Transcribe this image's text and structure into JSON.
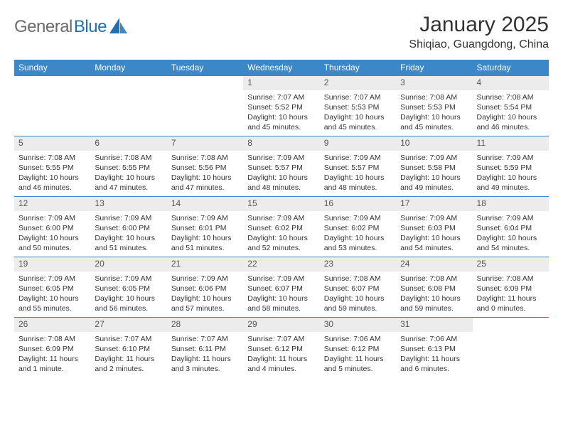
{
  "brand": {
    "name_part1": "General",
    "name_part2": "Blue",
    "text_color": "#6a6a6a",
    "accent_color": "#1f6fb2"
  },
  "title": "January 2025",
  "location": "Shiqiao, Guangdong, China",
  "colors": {
    "header_bg": "#3b87c8",
    "header_text": "#ffffff",
    "row_divider": "#3b87c8",
    "daynum_bg": "#ececec",
    "body_text": "#333333",
    "page_bg": "#ffffff"
  },
  "fonts": {
    "title_size_pt": 30,
    "location_size_pt": 16,
    "dayheader_size_pt": 12,
    "daynum_size_pt": 12,
    "body_size_pt": 10.5
  },
  "layout": {
    "type": "table",
    "columns": 7,
    "rows": 5
  },
  "day_headers": [
    "Sunday",
    "Monday",
    "Tuesday",
    "Wednesday",
    "Thursday",
    "Friday",
    "Saturday"
  ],
  "weeks": [
    [
      {
        "empty": true
      },
      {
        "empty": true
      },
      {
        "empty": true
      },
      {
        "n": "1",
        "sunrise": "7:07 AM",
        "sunset": "5:52 PM",
        "daylight": "10 hours and 45 minutes."
      },
      {
        "n": "2",
        "sunrise": "7:07 AM",
        "sunset": "5:53 PM",
        "daylight": "10 hours and 45 minutes."
      },
      {
        "n": "3",
        "sunrise": "7:08 AM",
        "sunset": "5:53 PM",
        "daylight": "10 hours and 45 minutes."
      },
      {
        "n": "4",
        "sunrise": "7:08 AM",
        "sunset": "5:54 PM",
        "daylight": "10 hours and 46 minutes."
      }
    ],
    [
      {
        "n": "5",
        "sunrise": "7:08 AM",
        "sunset": "5:55 PM",
        "daylight": "10 hours and 46 minutes."
      },
      {
        "n": "6",
        "sunrise": "7:08 AM",
        "sunset": "5:55 PM",
        "daylight": "10 hours and 47 minutes."
      },
      {
        "n": "7",
        "sunrise": "7:08 AM",
        "sunset": "5:56 PM",
        "daylight": "10 hours and 47 minutes."
      },
      {
        "n": "8",
        "sunrise": "7:09 AM",
        "sunset": "5:57 PM",
        "daylight": "10 hours and 48 minutes."
      },
      {
        "n": "9",
        "sunrise": "7:09 AM",
        "sunset": "5:57 PM",
        "daylight": "10 hours and 48 minutes."
      },
      {
        "n": "10",
        "sunrise": "7:09 AM",
        "sunset": "5:58 PM",
        "daylight": "10 hours and 49 minutes."
      },
      {
        "n": "11",
        "sunrise": "7:09 AM",
        "sunset": "5:59 PM",
        "daylight": "10 hours and 49 minutes."
      }
    ],
    [
      {
        "n": "12",
        "sunrise": "7:09 AM",
        "sunset": "6:00 PM",
        "daylight": "10 hours and 50 minutes."
      },
      {
        "n": "13",
        "sunrise": "7:09 AM",
        "sunset": "6:00 PM",
        "daylight": "10 hours and 51 minutes."
      },
      {
        "n": "14",
        "sunrise": "7:09 AM",
        "sunset": "6:01 PM",
        "daylight": "10 hours and 51 minutes."
      },
      {
        "n": "15",
        "sunrise": "7:09 AM",
        "sunset": "6:02 PM",
        "daylight": "10 hours and 52 minutes."
      },
      {
        "n": "16",
        "sunrise": "7:09 AM",
        "sunset": "6:02 PM",
        "daylight": "10 hours and 53 minutes."
      },
      {
        "n": "17",
        "sunrise": "7:09 AM",
        "sunset": "6:03 PM",
        "daylight": "10 hours and 54 minutes."
      },
      {
        "n": "18",
        "sunrise": "7:09 AM",
        "sunset": "6:04 PM",
        "daylight": "10 hours and 54 minutes."
      }
    ],
    [
      {
        "n": "19",
        "sunrise": "7:09 AM",
        "sunset": "6:05 PM",
        "daylight": "10 hours and 55 minutes."
      },
      {
        "n": "20",
        "sunrise": "7:09 AM",
        "sunset": "6:05 PM",
        "daylight": "10 hours and 56 minutes."
      },
      {
        "n": "21",
        "sunrise": "7:09 AM",
        "sunset": "6:06 PM",
        "daylight": "10 hours and 57 minutes."
      },
      {
        "n": "22",
        "sunrise": "7:09 AM",
        "sunset": "6:07 PM",
        "daylight": "10 hours and 58 minutes."
      },
      {
        "n": "23",
        "sunrise": "7:08 AM",
        "sunset": "6:07 PM",
        "daylight": "10 hours and 59 minutes."
      },
      {
        "n": "24",
        "sunrise": "7:08 AM",
        "sunset": "6:08 PM",
        "daylight": "10 hours and 59 minutes."
      },
      {
        "n": "25",
        "sunrise": "7:08 AM",
        "sunset": "6:09 PM",
        "daylight": "11 hours and 0 minutes."
      }
    ],
    [
      {
        "n": "26",
        "sunrise": "7:08 AM",
        "sunset": "6:09 PM",
        "daylight": "11 hours and 1 minute."
      },
      {
        "n": "27",
        "sunrise": "7:07 AM",
        "sunset": "6:10 PM",
        "daylight": "11 hours and 2 minutes."
      },
      {
        "n": "28",
        "sunrise": "7:07 AM",
        "sunset": "6:11 PM",
        "daylight": "11 hours and 3 minutes."
      },
      {
        "n": "29",
        "sunrise": "7:07 AM",
        "sunset": "6:12 PM",
        "daylight": "11 hours and 4 minutes."
      },
      {
        "n": "30",
        "sunrise": "7:06 AM",
        "sunset": "6:12 PM",
        "daylight": "11 hours and 5 minutes."
      },
      {
        "n": "31",
        "sunrise": "7:06 AM",
        "sunset": "6:13 PM",
        "daylight": "11 hours and 6 minutes."
      },
      {
        "empty": true
      }
    ]
  ],
  "labels": {
    "sunrise": "Sunrise:",
    "sunset": "Sunset:",
    "daylight": "Daylight:"
  }
}
